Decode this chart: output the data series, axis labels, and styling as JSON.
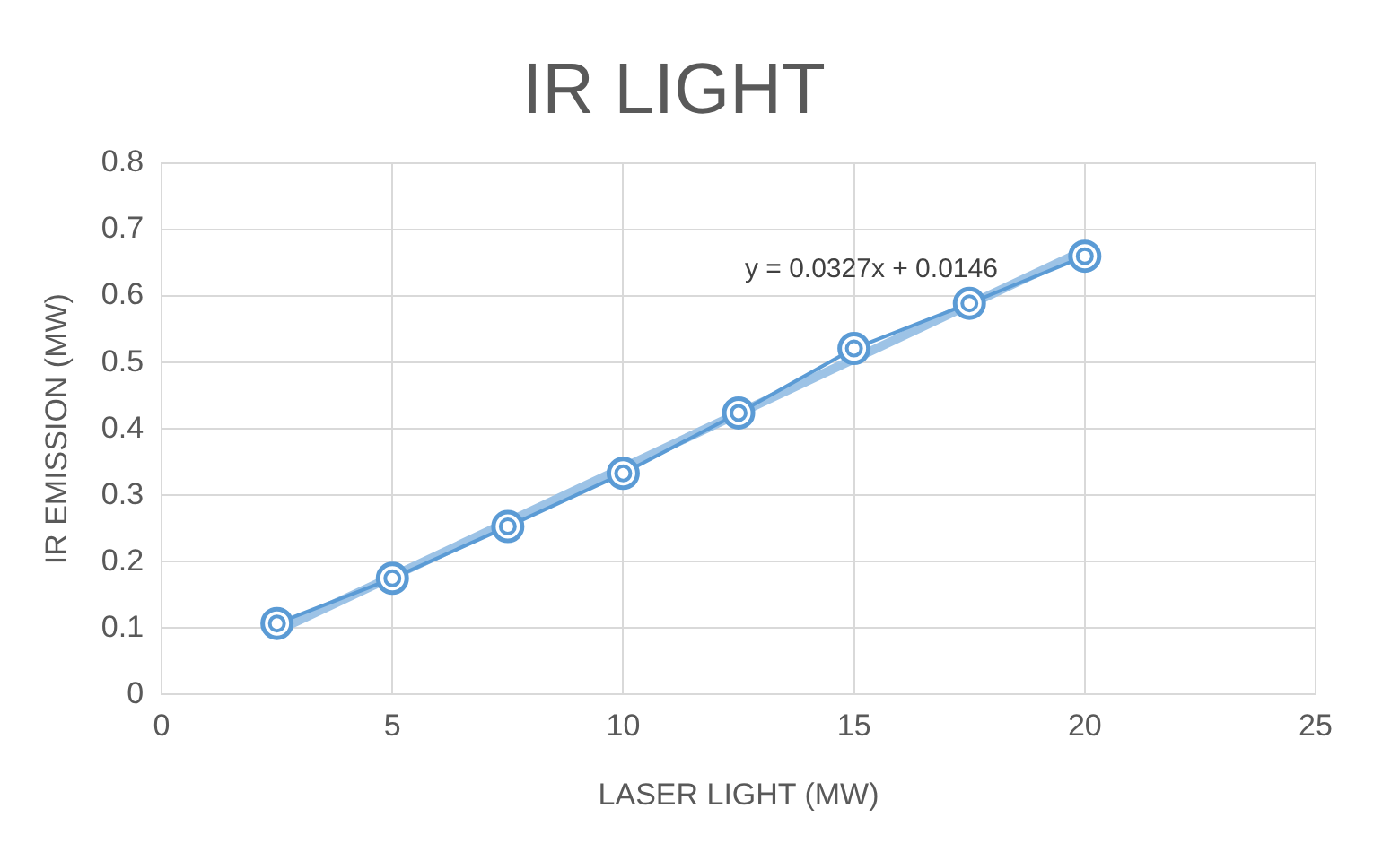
{
  "chart_data": {
    "type": "line",
    "title": "IR LIGHT",
    "xlabel": "LASER LIGHT (MW)",
    "ylabel": "IR EMISSION (MW)",
    "x": [
      2.5,
      5,
      7.5,
      10,
      12.5,
      15,
      17.5,
      20
    ],
    "series": [
      {
        "color": "#5b9bd5",
        "values": [
          0.107,
          0.175,
          0.253,
          0.333,
          0.424,
          0.521,
          0.589,
          0.66
        ],
        "marker": "circle"
      },
      {
        "type": "line",
        "color": "#9dc3e6",
        "x": [
          2.5,
          20
        ],
        "values": [
          0.096,
          0.669
        ],
        "marker": "none"
      }
    ],
    "annotations": [
      "y = 0.0327x + 0.0146"
    ],
    "xlim": [
      0,
      25
    ],
    "xticks": [
      0,
      5,
      10,
      15,
      20,
      25
    ],
    "ylim": [
      0,
      0.8
    ],
    "yticks": [
      0,
      0.1,
      0.2,
      0.3,
      0.4,
      0.5,
      0.6,
      0.7,
      0.8
    ],
    "grid": true,
    "legend": false
  }
}
